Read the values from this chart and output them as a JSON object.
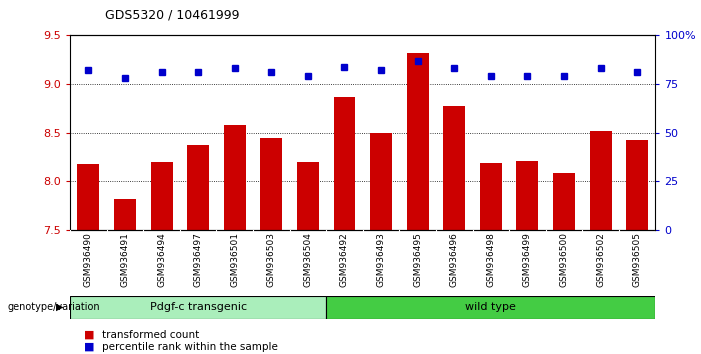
{
  "title": "GDS5320 / 10461999",
  "categories": [
    "GSM936490",
    "GSM936491",
    "GSM936494",
    "GSM936497",
    "GSM936501",
    "GSM936503",
    "GSM936504",
    "GSM936492",
    "GSM936493",
    "GSM936495",
    "GSM936496",
    "GSM936498",
    "GSM936499",
    "GSM936500",
    "GSM936502",
    "GSM936505"
  ],
  "bar_values": [
    8.18,
    7.82,
    8.2,
    8.37,
    8.58,
    8.45,
    8.2,
    8.87,
    8.5,
    9.32,
    8.77,
    8.19,
    8.21,
    8.09,
    8.52,
    8.43
  ],
  "dot_values": [
    82,
    78,
    81,
    81,
    83,
    81,
    79,
    84,
    82,
    87,
    83,
    79,
    79,
    79,
    83,
    81
  ],
  "bar_color": "#cc0000",
  "dot_color": "#0000cc",
  "ymin": 7.5,
  "ymax": 9.5,
  "y2min": 0,
  "y2max": 100,
  "yticks": [
    7.5,
    8.0,
    8.5,
    9.0,
    9.5
  ],
  "y2ticks": [
    0,
    25,
    50,
    75,
    100
  ],
  "y2ticklabels": [
    "0",
    "25",
    "50",
    "75",
    "100%"
  ],
  "gridlines": [
    8.0,
    8.5,
    9.0
  ],
  "group1_label": "Pdgf-c transgenic",
  "group2_label": "wild type",
  "group1_count": 7,
  "group2_count": 9,
  "group_label_prefix": "genotype/variation",
  "group1_color": "#aaeebb",
  "group2_color": "#44cc44",
  "legend_items": [
    "transformed count",
    "percentile rank within the sample"
  ],
  "bar_color_legend": "#cc0000",
  "dot_color_legend": "#0000cc",
  "bar_width": 0.6,
  "bg_color": "#dddddd",
  "spine_color": "#000000"
}
